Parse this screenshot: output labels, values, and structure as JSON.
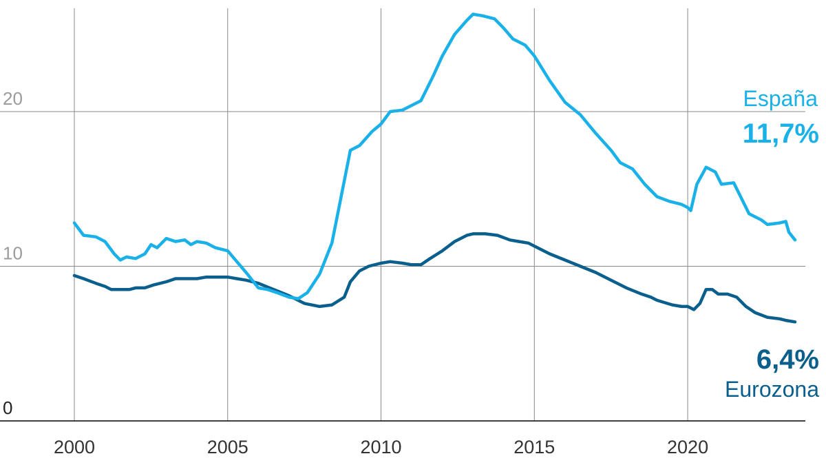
{
  "chart_data": {
    "type": "line",
    "title": "",
    "xlabel": "",
    "ylabel": "",
    "xlim": [
      2000,
      2023.5
    ],
    "ylim": [
      0,
      26
    ],
    "y_ticks": [
      {
        "value": 0,
        "label": "0"
      },
      {
        "value": 10,
        "label": "10"
      },
      {
        "value": 20,
        "label": "20"
      }
    ],
    "x_ticks": [
      {
        "value": 2000,
        "label": "2000"
      },
      {
        "value": 2005,
        "label": "2005"
      },
      {
        "value": 2010,
        "label": "2010"
      },
      {
        "value": 2015,
        "label": "2015"
      },
      {
        "value": 2020,
        "label": "2020"
      }
    ],
    "grid": {
      "horizontal": true,
      "vertical": true
    },
    "legend": "direct labels at right end of lines",
    "series": [
      {
        "name": "España",
        "end_label": "11,7%",
        "color": "#1ab0e8",
        "points": [
          [
            2000.0,
            12.8
          ],
          [
            2000.3,
            12.0
          ],
          [
            2000.7,
            11.9
          ],
          [
            2001.0,
            11.6
          ],
          [
            2001.3,
            10.8
          ],
          [
            2001.5,
            10.4
          ],
          [
            2001.7,
            10.6
          ],
          [
            2002.0,
            10.5
          ],
          [
            2002.3,
            10.8
          ],
          [
            2002.5,
            11.4
          ],
          [
            2002.7,
            11.2
          ],
          [
            2003.0,
            11.8
          ],
          [
            2003.3,
            11.6
          ],
          [
            2003.6,
            11.7
          ],
          [
            2003.8,
            11.4
          ],
          [
            2004.0,
            11.6
          ],
          [
            2004.3,
            11.5
          ],
          [
            2004.6,
            11.2
          ],
          [
            2005.0,
            11.0
          ],
          [
            2005.3,
            10.3
          ],
          [
            2005.6,
            9.6
          ],
          [
            2006.0,
            8.6
          ],
          [
            2006.3,
            8.5
          ],
          [
            2006.6,
            8.3
          ],
          [
            2007.0,
            8.0
          ],
          [
            2007.3,
            7.9
          ],
          [
            2007.6,
            8.3
          ],
          [
            2008.0,
            9.5
          ],
          [
            2008.4,
            11.5
          ],
          [
            2008.7,
            14.5
          ],
          [
            2009.0,
            17.5
          ],
          [
            2009.3,
            17.8
          ],
          [
            2009.7,
            18.7
          ],
          [
            2010.0,
            19.2
          ],
          [
            2010.3,
            20.0
          ],
          [
            2010.7,
            20.1
          ],
          [
            2011.0,
            20.4
          ],
          [
            2011.3,
            20.7
          ],
          [
            2011.7,
            22.3
          ],
          [
            2012.0,
            23.6
          ],
          [
            2012.4,
            25.0
          ],
          [
            2012.8,
            25.9
          ],
          [
            2013.0,
            26.3
          ],
          [
            2013.3,
            26.2
          ],
          [
            2013.7,
            26.0
          ],
          [
            2014.0,
            25.4
          ],
          [
            2014.3,
            24.7
          ],
          [
            2014.7,
            24.3
          ],
          [
            2015.0,
            23.6
          ],
          [
            2015.5,
            22.0
          ],
          [
            2016.0,
            20.6
          ],
          [
            2016.5,
            19.8
          ],
          [
            2017.0,
            18.6
          ],
          [
            2017.5,
            17.5
          ],
          [
            2017.8,
            16.7
          ],
          [
            2018.2,
            16.3
          ],
          [
            2018.6,
            15.3
          ],
          [
            2019.0,
            14.5
          ],
          [
            2019.4,
            14.2
          ],
          [
            2019.8,
            14.0
          ],
          [
            2020.0,
            13.8
          ],
          [
            2020.1,
            13.6
          ],
          [
            2020.3,
            15.3
          ],
          [
            2020.6,
            16.4
          ],
          [
            2020.9,
            16.1
          ],
          [
            2021.1,
            15.3
          ],
          [
            2021.5,
            15.4
          ],
          [
            2021.8,
            14.2
          ],
          [
            2022.0,
            13.4
          ],
          [
            2022.4,
            13.0
          ],
          [
            2022.6,
            12.7
          ],
          [
            2023.0,
            12.8
          ],
          [
            2023.2,
            12.9
          ],
          [
            2023.3,
            12.2
          ],
          [
            2023.5,
            11.7
          ]
        ]
      },
      {
        "name": "Eurozona",
        "end_label": "6,4%",
        "color": "#0a5f8c",
        "points": [
          [
            2000.0,
            9.4
          ],
          [
            2000.3,
            9.2
          ],
          [
            2000.7,
            8.9
          ],
          [
            2001.0,
            8.7
          ],
          [
            2001.2,
            8.5
          ],
          [
            2001.5,
            8.5
          ],
          [
            2001.8,
            8.5
          ],
          [
            2002.0,
            8.6
          ],
          [
            2002.3,
            8.6
          ],
          [
            2002.6,
            8.8
          ],
          [
            2003.0,
            9.0
          ],
          [
            2003.3,
            9.2
          ],
          [
            2003.6,
            9.2
          ],
          [
            2004.0,
            9.2
          ],
          [
            2004.3,
            9.3
          ],
          [
            2004.6,
            9.3
          ],
          [
            2005.0,
            9.3
          ],
          [
            2005.3,
            9.2
          ],
          [
            2005.6,
            9.1
          ],
          [
            2006.0,
            8.9
          ],
          [
            2006.5,
            8.5
          ],
          [
            2007.0,
            8.1
          ],
          [
            2007.5,
            7.6
          ],
          [
            2008.0,
            7.4
          ],
          [
            2008.4,
            7.5
          ],
          [
            2008.8,
            8.0
          ],
          [
            2009.0,
            9.0
          ],
          [
            2009.3,
            9.7
          ],
          [
            2009.6,
            10.0
          ],
          [
            2010.0,
            10.2
          ],
          [
            2010.3,
            10.3
          ],
          [
            2010.7,
            10.2
          ],
          [
            2011.0,
            10.1
          ],
          [
            2011.3,
            10.1
          ],
          [
            2011.6,
            10.5
          ],
          [
            2012.0,
            11.0
          ],
          [
            2012.4,
            11.6
          ],
          [
            2012.8,
            12.0
          ],
          [
            2013.0,
            12.1
          ],
          [
            2013.4,
            12.1
          ],
          [
            2013.8,
            12.0
          ],
          [
            2014.2,
            11.7
          ],
          [
            2014.5,
            11.6
          ],
          [
            2014.8,
            11.5
          ],
          [
            2015.0,
            11.3
          ],
          [
            2015.5,
            10.8
          ],
          [
            2016.0,
            10.4
          ],
          [
            2016.5,
            10.0
          ],
          [
            2017.0,
            9.6
          ],
          [
            2017.5,
            9.1
          ],
          [
            2018.0,
            8.6
          ],
          [
            2018.5,
            8.2
          ],
          [
            2018.8,
            8.0
          ],
          [
            2019.0,
            7.8
          ],
          [
            2019.5,
            7.5
          ],
          [
            2019.8,
            7.4
          ],
          [
            2020.0,
            7.4
          ],
          [
            2020.2,
            7.2
          ],
          [
            2020.4,
            7.6
          ],
          [
            2020.6,
            8.5
          ],
          [
            2020.8,
            8.5
          ],
          [
            2021.0,
            8.2
          ],
          [
            2021.3,
            8.2
          ],
          [
            2021.6,
            8.0
          ],
          [
            2021.9,
            7.4
          ],
          [
            2022.2,
            7.0
          ],
          [
            2022.6,
            6.7
          ],
          [
            2023.0,
            6.6
          ],
          [
            2023.2,
            6.5
          ],
          [
            2023.5,
            6.4
          ]
        ]
      }
    ]
  },
  "colors": {
    "axis_text": "#9b9b9b",
    "grid": "#888888",
    "baseline": "#000000"
  }
}
